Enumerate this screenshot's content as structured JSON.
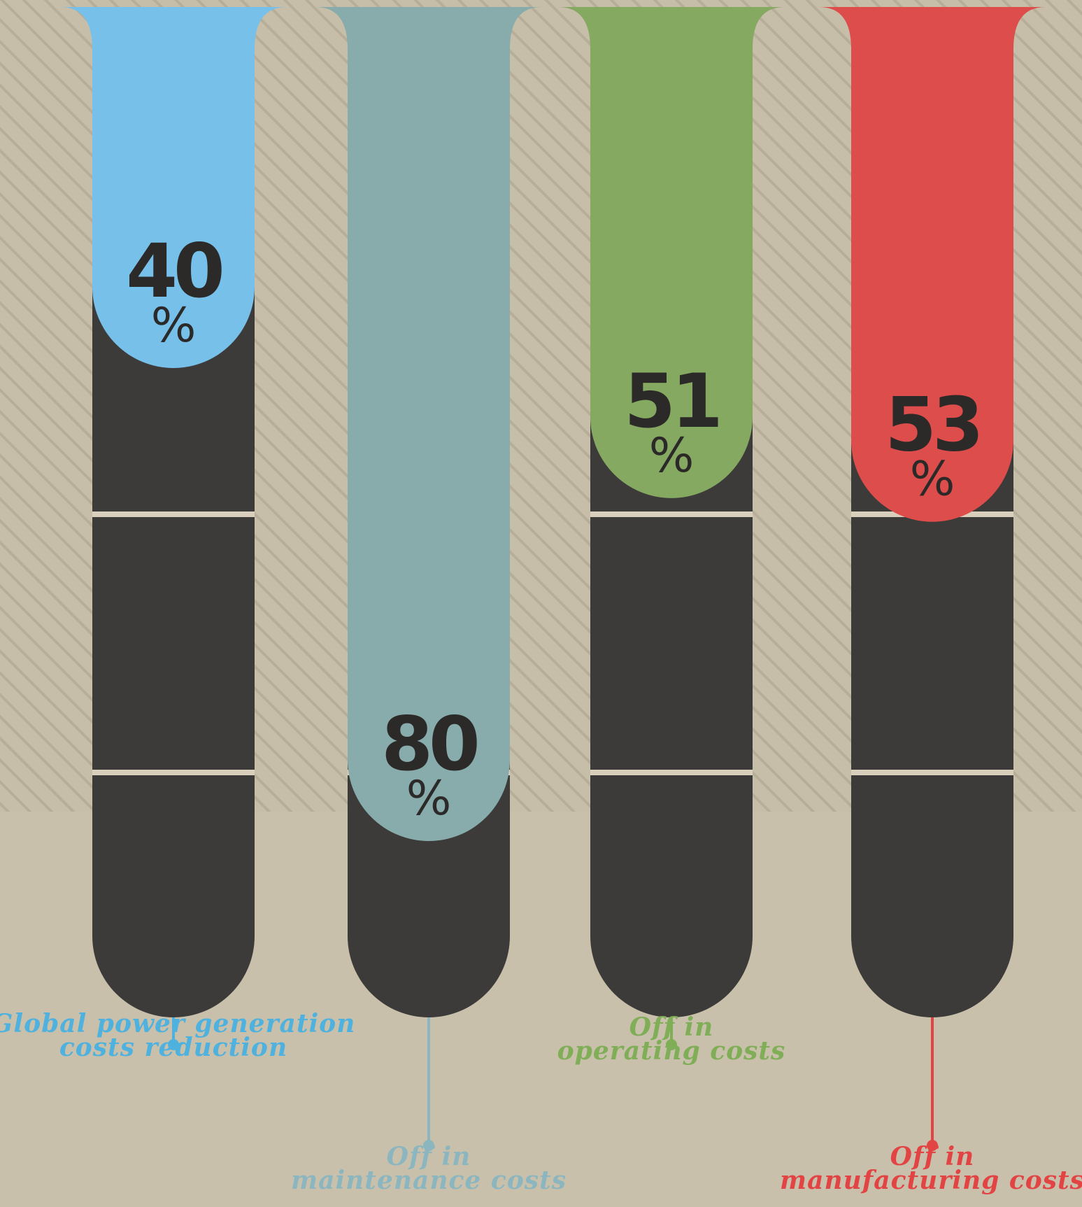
{
  "chart_data": {
    "type": "bar",
    "categories": [
      "Global power generation costs reduction",
      "Off in maintenance costs",
      "Off in operating costs",
      "Off in manufacturing costs"
    ],
    "values": [
      40,
      80,
      51,
      53
    ],
    "value_suffix": "%",
    "ylim": [
      0,
      100
    ],
    "label_lines": [
      [
        "Global power generation",
        "costs reduction"
      ],
      [
        "Off in",
        "maintenance costs"
      ],
      [
        "Off in",
        "operating costs"
      ],
      [
        "Off in",
        "manufacturing costs"
      ]
    ],
    "colors": [
      "#76c0ea",
      "#88abab",
      "#86a962",
      "#dc4d4b"
    ],
    "label_colors": [
      "#4fb1dd",
      "#8cb6bf",
      "#7fae57",
      "#e24343"
    ],
    "track_color": "#3c3b39",
    "separator_color": "#d8cfbc",
    "value_text_color": "#2b2a28",
    "background_color": "#c9c0ac",
    "stripe_color": "#b5ac97",
    "title": "",
    "xlabel": "",
    "ylabel": "",
    "grid": false,
    "legend": "none"
  }
}
